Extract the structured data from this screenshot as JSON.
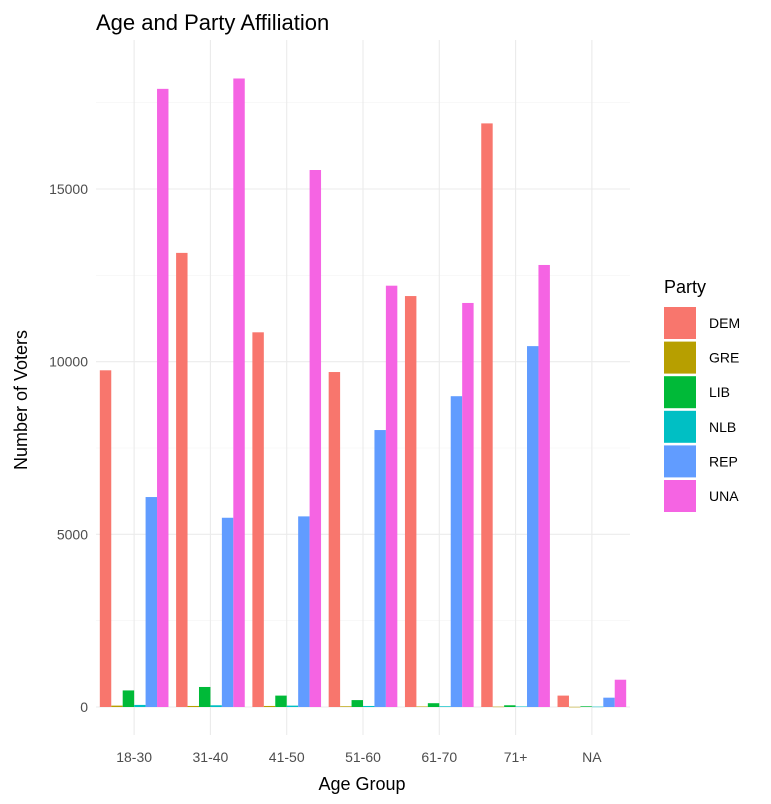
{
  "chart_data": {
    "type": "bar",
    "title": "Age and Party Affiliation",
    "xlabel": "Age Group",
    "ylabel": "Number of Voters",
    "categories": [
      "18-30",
      "31-40",
      "41-50",
      "51-60",
      "61-70",
      "71+",
      "NA"
    ],
    "ylim": [
      0,
      19000
    ],
    "yticks": [
      0,
      5000,
      10000,
      15000
    ],
    "grid": true,
    "legend": {
      "title": "Party",
      "placement": "right"
    },
    "series": [
      {
        "name": "DEM",
        "color": "#F8766D",
        "values": [
          9750,
          13150,
          10850,
          9700,
          11900,
          16900,
          330
        ]
      },
      {
        "name": "GRE",
        "color": "#B79F00",
        "values": [
          40,
          30,
          30,
          20,
          15,
          10,
          5
        ]
      },
      {
        "name": "LIB",
        "color": "#00BA38",
        "values": [
          480,
          580,
          330,
          200,
          110,
          50,
          20
        ]
      },
      {
        "name": "NLB",
        "color": "#00BFC4",
        "values": [
          60,
          50,
          40,
          30,
          20,
          15,
          10
        ]
      },
      {
        "name": "REP",
        "color": "#619CFF",
        "values": [
          6080,
          5480,
          5520,
          8020,
          9000,
          10450,
          270
        ]
      },
      {
        "name": "UNA",
        "color": "#F564E3",
        "values": [
          17900,
          18200,
          15550,
          12200,
          11700,
          12800,
          790
        ]
      }
    ]
  }
}
